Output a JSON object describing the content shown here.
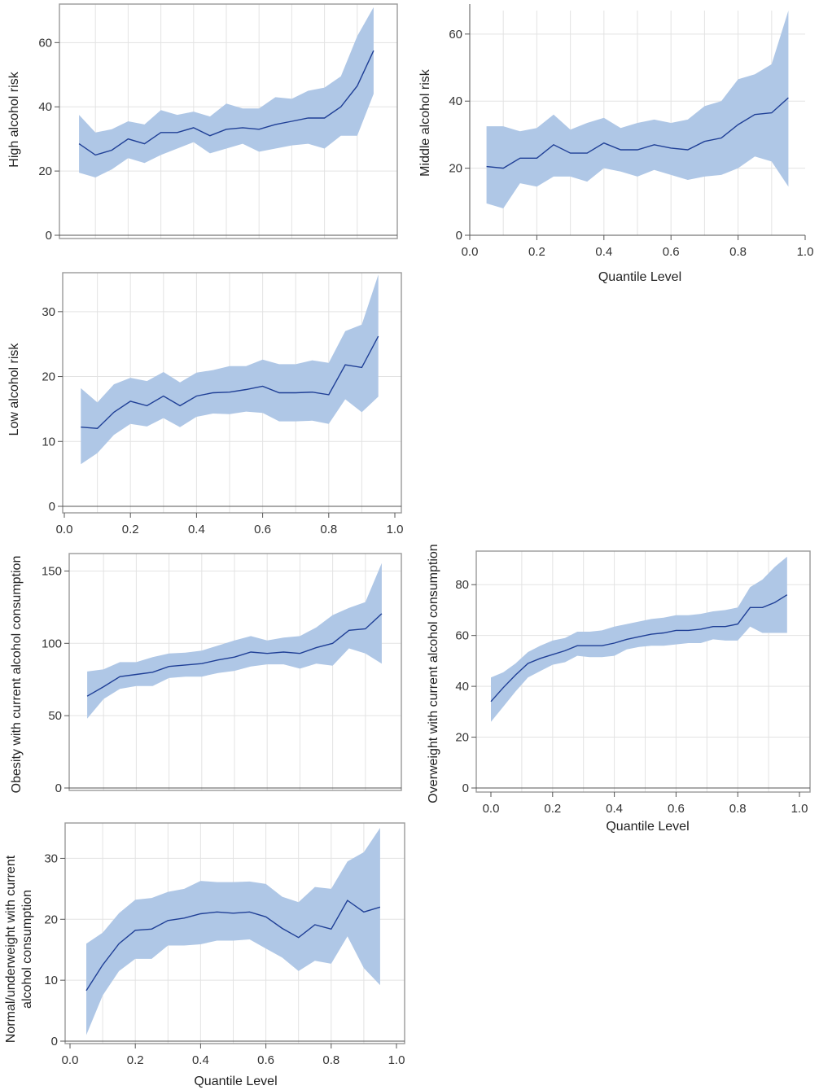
{
  "colors": {
    "band": "#afc7e6",
    "line": "#1f3f96"
  },
  "chart_data": [
    {
      "type": "line",
      "ylabel": "High alcohol risk",
      "xlabel": "",
      "xlim": [
        0,
        1.0
      ],
      "ylim": [
        0,
        72
      ],
      "yticks": [
        0,
        20,
        40,
        60
      ],
      "xticks": [],
      "show_x_ticklabels": false,
      "x": [
        0.05,
        0.1,
        0.15,
        0.2,
        0.25,
        0.3,
        0.35,
        0.4,
        0.45,
        0.5,
        0.55,
        0.6,
        0.65,
        0.7,
        0.75,
        0.8,
        0.85,
        0.9,
        0.95
      ],
      "series": [
        {
          "name": "estimate",
          "values": [
            28.5,
            25,
            26.5,
            30,
            28.5,
            32,
            32,
            33.5,
            31,
            33,
            33.5,
            33,
            34.5,
            35.5,
            36.5,
            36.5,
            40,
            46.5,
            57.5
          ]
        },
        {
          "name": "lower",
          "values": [
            19.5,
            18,
            20.5,
            24,
            22.5,
            25,
            27,
            29,
            25.5,
            27,
            28.5,
            26,
            27,
            28,
            28.5,
            27,
            31,
            31,
            44
          ]
        },
        {
          "name": "upper",
          "values": [
            37.5,
            32,
            33,
            35.5,
            34.5,
            39,
            37.5,
            38.5,
            37,
            41,
            39.5,
            39.5,
            43,
            42.5,
            45,
            46,
            49.5,
            62,
            71
          ]
        }
      ]
    },
    {
      "type": "line",
      "ylabel": "Middle alcohol risk",
      "xlabel": "Quantile Level",
      "xlim": [
        0,
        1.0
      ],
      "ylim": [
        0,
        67
      ],
      "yticks": [
        0,
        20,
        40,
        60
      ],
      "xticks": [
        0.0,
        0.2,
        0.4,
        0.6,
        0.8,
        1.0
      ],
      "xtick_labels": [
        "0.0",
        "0.2",
        "0.4",
        "0.6",
        "0.8",
        "1.0"
      ],
      "show_x_ticklabels": true,
      "x": [
        0.05,
        0.1,
        0.15,
        0.2,
        0.25,
        0.3,
        0.35,
        0.4,
        0.45,
        0.5,
        0.55,
        0.6,
        0.65,
        0.7,
        0.75,
        0.8,
        0.85,
        0.9,
        0.95
      ],
      "series": [
        {
          "name": "estimate",
          "values": [
            20.5,
            20,
            23,
            23,
            27,
            24.5,
            24.5,
            27.5,
            25.5,
            25.5,
            27,
            26,
            25.5,
            28,
            29,
            33,
            36,
            36.5,
            41
          ]
        },
        {
          "name": "lower",
          "values": [
            9.5,
            8,
            15.5,
            14.5,
            17.5,
            17.5,
            16,
            20,
            19,
            17.5,
            19.5,
            18,
            16.5,
            17.5,
            18,
            20,
            23.5,
            22,
            14.5
          ]
        },
        {
          "name": "upper",
          "values": [
            32.5,
            32.5,
            31,
            32,
            36,
            31.5,
            33.5,
            35,
            32,
            33.5,
            34.5,
            33.5,
            34.5,
            38.5,
            40,
            46.5,
            48,
            51,
            67
          ]
        }
      ]
    },
    {
      "type": "line",
      "ylabel": "Low alcohol risk",
      "xlabel": "",
      "xlim": [
        0,
        1.0
      ],
      "ylim": [
        0,
        36
      ],
      "yticks": [
        0,
        10,
        20,
        30
      ],
      "xticks": [
        0.0,
        0.2,
        0.4,
        0.6,
        0.8,
        1.0
      ],
      "xtick_labels": [
        "0.0",
        "0.2",
        "0.4",
        "0.6",
        "0.8",
        "1.0"
      ],
      "show_x_ticklabels": true,
      "x": [
        0.05,
        0.1,
        0.15,
        0.2,
        0.25,
        0.3,
        0.35,
        0.4,
        0.45,
        0.5,
        0.55,
        0.6,
        0.65,
        0.7,
        0.75,
        0.8,
        0.85,
        0.9,
        0.95
      ],
      "series": [
        {
          "name": "estimate",
          "values": [
            12.2,
            12,
            14.5,
            16.2,
            15.5,
            17,
            15.5,
            17,
            17.5,
            17.6,
            18,
            18.5,
            17.5,
            17.5,
            17.6,
            17.2,
            21.8,
            21.4,
            26.2
          ]
        },
        {
          "name": "lower",
          "values": [
            6.5,
            8.2,
            11,
            12.7,
            12.3,
            13.6,
            12.2,
            13.8,
            14.3,
            14.2,
            14.6,
            14.4,
            13.1,
            13.1,
            13.2,
            12.7,
            16.5,
            14.5,
            16.9
          ]
        },
        {
          "name": "upper",
          "values": [
            18.2,
            16,
            18.8,
            19.8,
            19.3,
            20.7,
            19.1,
            20.6,
            21,
            21.6,
            21.6,
            22.6,
            21.9,
            21.9,
            22.5,
            22.1,
            27,
            28,
            35.7
          ]
        }
      ]
    },
    {
      "type": "line",
      "ylabel": "Obesity with current alcohol consumption",
      "xlabel": "",
      "xlim": [
        0,
        1.0
      ],
      "ylim": [
        0,
        157
      ],
      "yticks": [
        0,
        50,
        100,
        150
      ],
      "xticks": [],
      "show_x_ticklabels": false,
      "x": [
        0.05,
        0.1,
        0.15,
        0.2,
        0.25,
        0.3,
        0.35,
        0.4,
        0.45,
        0.5,
        0.55,
        0.6,
        0.65,
        0.7,
        0.75,
        0.8,
        0.85,
        0.9,
        0.95
      ],
      "series": [
        {
          "name": "estimate",
          "values": [
            63.5,
            70,
            77,
            78.5,
            80,
            84,
            85,
            86,
            88.5,
            90.5,
            94,
            93,
            94,
            93,
            97,
            100,
            109,
            110,
            120.5
          ]
        },
        {
          "name": "lower",
          "values": [
            48,
            61.5,
            68.5,
            70.5,
            70.5,
            76,
            77,
            77,
            79.5,
            81,
            84,
            85.5,
            85.5,
            82.5,
            86,
            84.5,
            96.5,
            93,
            86
          ]
        },
        {
          "name": "upper",
          "values": [
            80.5,
            82,
            87,
            87,
            90.5,
            93,
            93.5,
            95,
            98.5,
            102,
            105,
            102,
            104,
            105,
            111,
            119.5,
            124.5,
            128.5,
            155.5
          ]
        }
      ]
    },
    {
      "type": "line",
      "ylabel": "Overweight with current alcohol consumption",
      "xlabel": "Quantile Level",
      "xlim": [
        0,
        1.0
      ],
      "ylim": [
        0,
        90
      ],
      "yticks": [
        0,
        20,
        40,
        60,
        80
      ],
      "xticks": [
        0.0,
        0.2,
        0.4,
        0.6,
        0.8,
        1.0
      ],
      "xtick_labels": [
        "0.0",
        "0.2",
        "0.4",
        "0.6",
        "0.8",
        "1.0"
      ],
      "show_x_ticklabels": true,
      "x": [
        0.0,
        0.04,
        0.08,
        0.12,
        0.16,
        0.2,
        0.24,
        0.28,
        0.32,
        0.36,
        0.4,
        0.44,
        0.48,
        0.52,
        0.56,
        0.6,
        0.64,
        0.68,
        0.72,
        0.76,
        0.8,
        0.84,
        0.88,
        0.92,
        0.96
      ],
      "series": [
        {
          "name": "estimate",
          "values": [
            34,
            39.5,
            44.5,
            49,
            51,
            52.5,
            54,
            56,
            56,
            56,
            57,
            58.5,
            59.5,
            60.5,
            61,
            62,
            62,
            62.5,
            63.5,
            63.5,
            64.5,
            71,
            71,
            73,
            76
          ]
        },
        {
          "name": "lower",
          "values": [
            26,
            32,
            38,
            43.5,
            46,
            48.5,
            49.5,
            52,
            51.5,
            51.5,
            52,
            54.5,
            55.5,
            56,
            56,
            56.5,
            57,
            57,
            58.5,
            58,
            58,
            63.5,
            61,
            61,
            61
          ]
        },
        {
          "name": "upper",
          "values": [
            43.5,
            45.5,
            49,
            53.5,
            56,
            58,
            59,
            61.5,
            61.5,
            62,
            63.5,
            64.5,
            65.5,
            66.5,
            67,
            68,
            68,
            68.5,
            69.5,
            70,
            71,
            79,
            82,
            87,
            91
          ]
        }
      ]
    },
    {
      "type": "line",
      "ylabel": "Normal/underweight  with current alcohol consumption",
      "ylabel_lines": [
        "Normal/underweight  with current",
        "alcohol consumption"
      ],
      "xlabel": "Quantile Level",
      "xlim": [
        0,
        1.0
      ],
      "ylim": [
        0,
        35
      ],
      "yticks": [
        0,
        10,
        20,
        30
      ],
      "xticks": [
        0.0,
        0.2,
        0.4,
        0.6,
        0.8,
        1.0
      ],
      "xtick_labels": [
        "0.0",
        "0.2",
        "0.4",
        "0.6",
        "0.8",
        "1.0"
      ],
      "show_x_ticklabels": true,
      "x": [
        0.05,
        0.1,
        0.15,
        0.2,
        0.25,
        0.3,
        0.35,
        0.4,
        0.45,
        0.5,
        0.55,
        0.6,
        0.65,
        0.7,
        0.75,
        0.8,
        0.85,
        0.9,
        0.95
      ],
      "series": [
        {
          "name": "estimate",
          "values": [
            8.3,
            12.5,
            16,
            18.2,
            18.4,
            19.8,
            20.2,
            20.9,
            21.2,
            21,
            21.2,
            20.4,
            18.5,
            17,
            19.1,
            18.4,
            23.1,
            21.2,
            22
          ]
        },
        {
          "name": "lower",
          "values": [
            1,
            7.5,
            11.5,
            13.5,
            13.5,
            15.7,
            15.7,
            15.9,
            16.5,
            16.5,
            16.7,
            15.2,
            13.7,
            11.5,
            13.2,
            12.7,
            17.2,
            12,
            9.2
          ]
        },
        {
          "name": "upper",
          "values": [
            16,
            17.8,
            21,
            23.2,
            23.5,
            24.5,
            25,
            26.3,
            26.1,
            26.1,
            26.2,
            25.8,
            23.7,
            22.8,
            25.3,
            25,
            29.5,
            31,
            35
          ]
        }
      ]
    }
  ]
}
